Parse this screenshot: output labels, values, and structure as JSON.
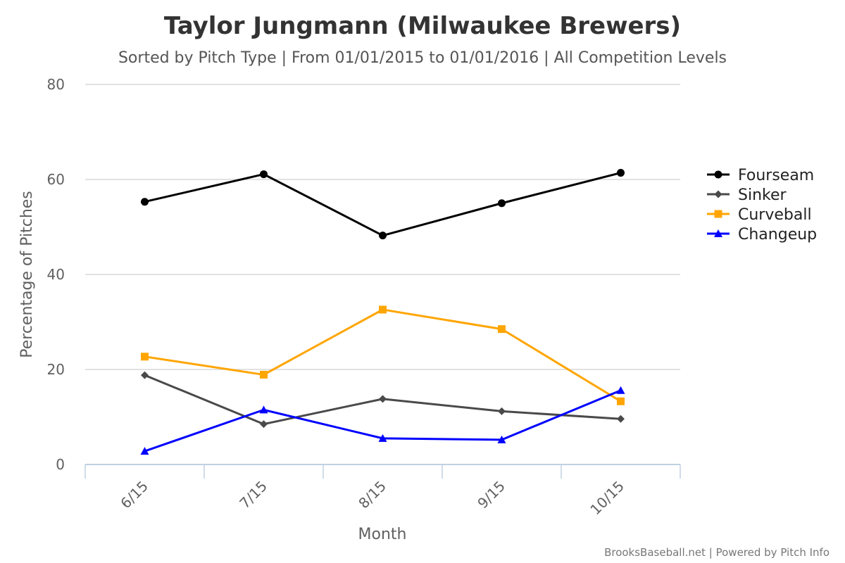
{
  "chart_data": {
    "type": "line",
    "title": "Taylor Jungmann (Milwaukee Brewers)",
    "subtitle": "Sorted by Pitch Type | From 01/01/2015 to 01/01/2016 | All Competition Levels",
    "xlabel": "Month",
    "ylabel": "Percentage of Pitches",
    "categories": [
      "6/15",
      "7/15",
      "8/15",
      "9/15",
      "10/15"
    ],
    "ylim": [
      0,
      80
    ],
    "yticks": [
      0,
      20,
      40,
      60,
      80
    ],
    "grid": true,
    "legend_position": "right",
    "series": [
      {
        "name": "Fourseam",
        "color": "#000000",
        "marker": "circle",
        "values": [
          55.3,
          61.1,
          48.2,
          55.0,
          61.4
        ]
      },
      {
        "name": "Sinker",
        "color": "#4a4a4a",
        "marker": "diamond",
        "values": [
          18.8,
          8.5,
          13.8,
          11.2,
          9.6
        ]
      },
      {
        "name": "Curveball",
        "color": "#ffa500",
        "marker": "square",
        "values": [
          22.7,
          18.9,
          32.6,
          28.5,
          13.3
        ]
      },
      {
        "name": "Changeup",
        "color": "#0000ff",
        "marker": "triangle",
        "values": [
          2.8,
          11.5,
          5.5,
          5.2,
          15.6
        ]
      }
    ]
  },
  "credit": "BrooksBaseball.net | Powered by Pitch Info"
}
